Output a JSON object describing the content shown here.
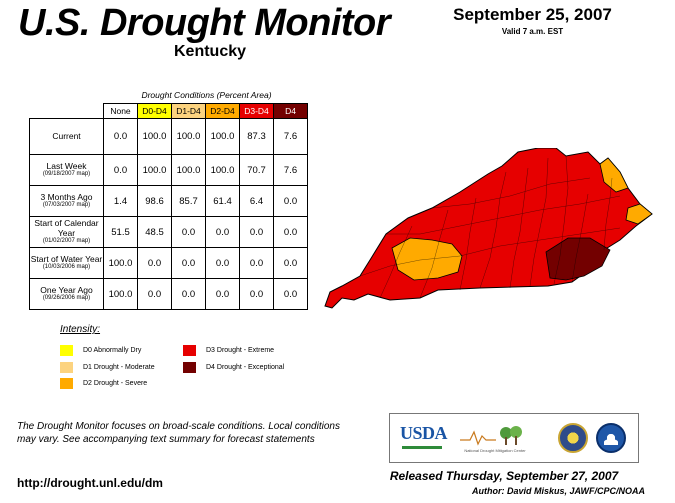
{
  "header": {
    "title": "U.S. Drought Monitor",
    "state": "Kentucky",
    "date": "September 25, 2007",
    "valid": "Valid 7 a.m. EST"
  },
  "table": {
    "caption": "Drought Conditions (Percent Area)",
    "columns": [
      {
        "label": "None",
        "color": "#ffffff"
      },
      {
        "label": "D0-D4",
        "color": "#ffff00"
      },
      {
        "label": "D1-D4",
        "color": "#fcd37f"
      },
      {
        "label": "D2-D4",
        "color": "#ffaa00"
      },
      {
        "label": "D3-D4",
        "color": "#e60000"
      },
      {
        "label": "D4",
        "color": "#730000"
      }
    ],
    "rows": [
      {
        "label": "Current",
        "sub": "",
        "values": [
          "0.0",
          "100.0",
          "100.0",
          "100.0",
          "87.3",
          "7.6"
        ]
      },
      {
        "label": "Last Week",
        "sub": "(09/18/2007 map)",
        "values": [
          "0.0",
          "100.0",
          "100.0",
          "100.0",
          "70.7",
          "7.6"
        ]
      },
      {
        "label": "3 Months Ago",
        "sub": "(07/03/2007 map)",
        "values": [
          "1.4",
          "98.6",
          "85.7",
          "61.4",
          "6.4",
          "0.0"
        ]
      },
      {
        "label": "Start of Calendar Year",
        "sub": "(01/02/2007 map)",
        "values": [
          "51.5",
          "48.5",
          "0.0",
          "0.0",
          "0.0",
          "0.0"
        ]
      },
      {
        "label": "Start of Water Year",
        "sub": "(10/03/2006 map)",
        "values": [
          "100.0",
          "0.0",
          "0.0",
          "0.0",
          "0.0",
          "0.0"
        ]
      },
      {
        "label": "One Year Ago",
        "sub": "(09/26/2006 map)",
        "values": [
          "100.0",
          "0.0",
          "0.0",
          "0.0",
          "0.0",
          "0.0"
        ]
      }
    ]
  },
  "legend": {
    "title": "Intensity:",
    "items": [
      {
        "label": "D0 Abnormally Dry",
        "color": "#ffff00"
      },
      {
        "label": "D1 Drought - Moderate",
        "color": "#fcd37f"
      },
      {
        "label": "D2 Drought - Severe",
        "color": "#ffaa00"
      },
      {
        "label": "D3 Drought - Extreme",
        "color": "#e60000"
      },
      {
        "label": "D4 Drought - Exceptional",
        "color": "#730000"
      }
    ]
  },
  "footer": {
    "note": "The Drought Monitor focuses on broad-scale conditions. Local conditions may vary. See accompanying text summary for forecast statements",
    "url": "http://drought.unl.edu/dm",
    "released": "Released Thursday, September 27, 2007",
    "author": "Author: David Miskus, JAWF/CPC/NOAA",
    "logos": {
      "usda": "USDA",
      "ndmc": "National Drought Mitigation Center"
    }
  }
}
